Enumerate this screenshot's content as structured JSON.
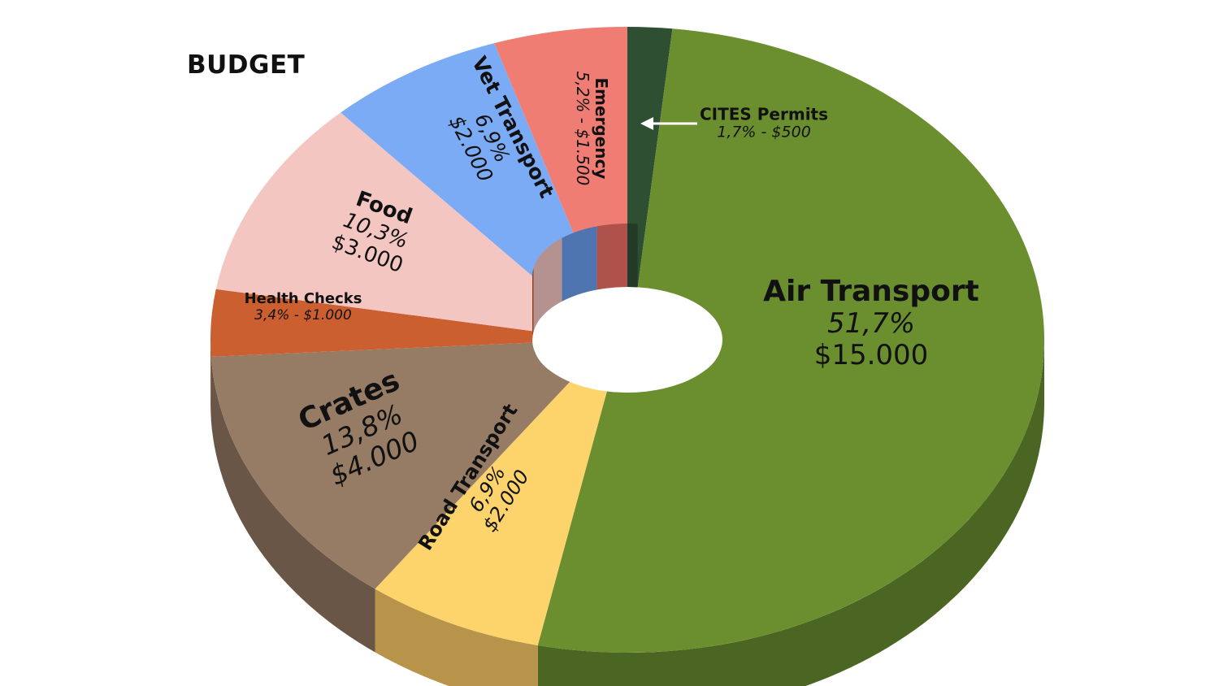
{
  "chart_data": {
    "type": "pie",
    "title": "BUDGET",
    "slices": [
      {
        "name": "CITES Permits",
        "percent_label": "1,7%",
        "amount_label": "$500",
        "value": 500,
        "color": "#2f4f33",
        "side": "#233b26"
      },
      {
        "name": "Air Transport",
        "percent_label": "51,7%",
        "amount_label": "$15.000",
        "value": 15000,
        "color": "#6b8f2f",
        "side": "#4b6622"
      },
      {
        "name": "Road Transport",
        "percent_label": "6,9%",
        "amount_label": "$2.000",
        "value": 2000,
        "color": "#fdd36b",
        "side": "#b8944a"
      },
      {
        "name": "Crates",
        "percent_label": "13,8%",
        "amount_label": "$4.000",
        "value": 4000,
        "color": "#967c65",
        "side": "#6a5646"
      },
      {
        "name": "Health Checks",
        "percent_label": "3,4%",
        "amount_label": "$1.000",
        "value": 1000,
        "color": "#cc5f2f",
        "side": "#8f4220"
      },
      {
        "name": "Food",
        "percent_label": "10,3%",
        "amount_label": "$3.000",
        "value": 3000,
        "color": "#f4c6c2",
        "side": "#b49290"
      },
      {
        "name": "Vet Transport",
        "percent_label": "6,9%",
        "amount_label": "$2.000",
        "value": 2000,
        "color": "#7cabf5",
        "side": "#4f75b0"
      },
      {
        "name": "Emergency",
        "percent_label": "5,2%",
        "amount_label": "$1.500",
        "value": 1500,
        "color": "#f07d74",
        "side": "#b0524c"
      }
    ]
  }
}
